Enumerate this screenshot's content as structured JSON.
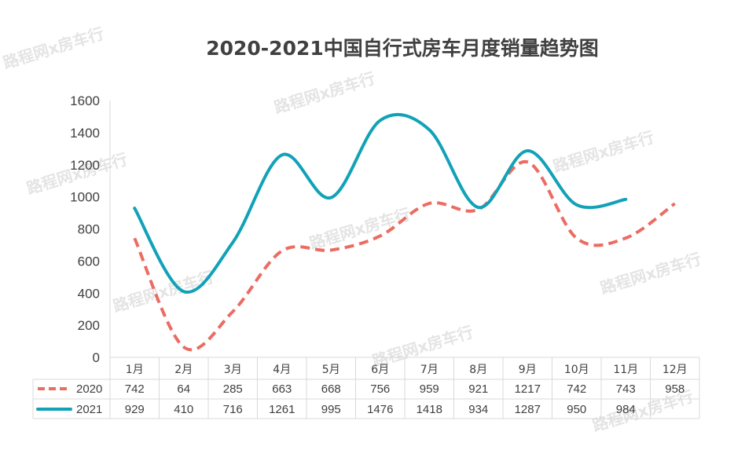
{
  "watermark": "路程网x房车行",
  "chart_data": {
    "type": "line",
    "title": "2020-2021中国自行式房车月度销量趋势图",
    "categories": [
      "1月",
      "2月",
      "3月",
      "4月",
      "5月",
      "6月",
      "7月",
      "8月",
      "9月",
      "10月",
      "11月",
      "12月"
    ],
    "ylim": [
      0,
      1600
    ],
    "yticks": [
      0,
      200,
      400,
      600,
      800,
      1000,
      1200,
      1400,
      1600
    ],
    "xlabel": "",
    "ylabel": "",
    "legend_position": "data-table",
    "series": [
      {
        "name": "2020",
        "color": "#EB6C63",
        "dash": true,
        "values": [
          742,
          64,
          285,
          663,
          668,
          756,
          959,
          921,
          1217,
          742,
          743,
          958
        ]
      },
      {
        "name": "2021",
        "color": "#12A2B8",
        "dash": false,
        "values": [
          929,
          410,
          716,
          1261,
          995,
          1476,
          1418,
          934,
          1287,
          950,
          984,
          null
        ]
      }
    ]
  }
}
